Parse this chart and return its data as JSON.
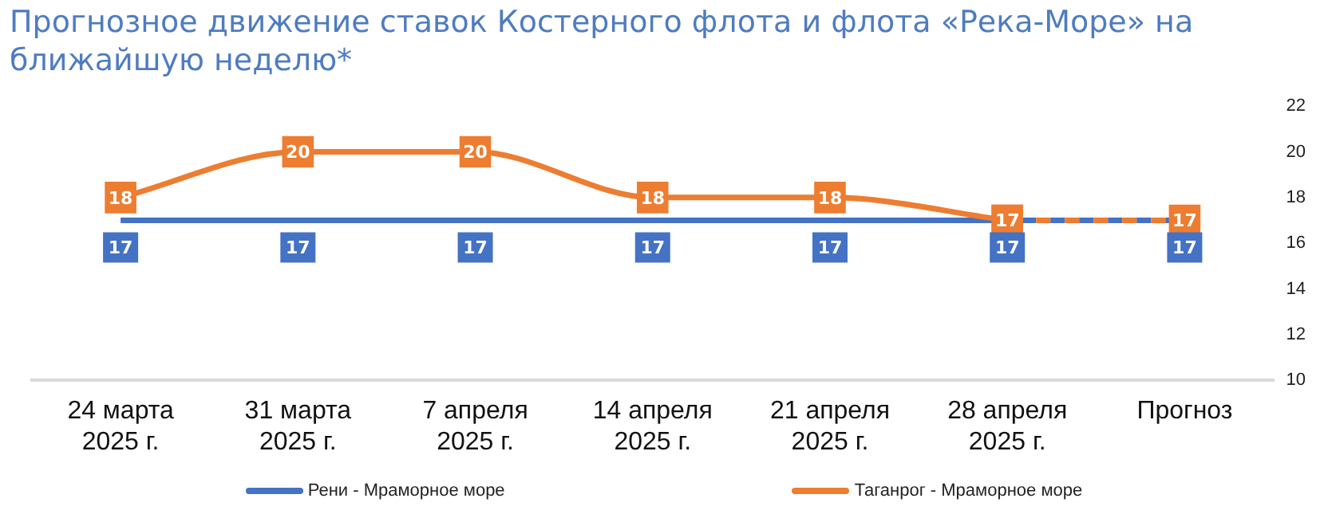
{
  "chart_data": {
    "type": "line",
    "title": "Прогнозное движение ставок Костерного флота и флота «Река-Море» на ближайшую неделю*",
    "categories": [
      "24 марта\n2025 г.",
      "31 марта\n2025 г.",
      "7 апреля\n2025 г.",
      "14 апреля\n2025 г.",
      "21 апреля\n2025 г.",
      "28 апреля\n2025 г.",
      "Прогноз"
    ],
    "series": [
      {
        "name": "Рени - Мраморное море",
        "color": "#4472c4",
        "values": [
          17,
          17,
          17,
          17,
          17,
          17,
          null
        ],
        "line_style": "solid"
      },
      {
        "color": "#4472c4",
        "values": [
          null,
          null,
          null,
          null,
          null,
          17,
          17
        ],
        "value_labels": [
          null,
          null,
          null,
          null,
          null,
          null,
          "17"
        ],
        "line_style": "dashed"
      },
      {
        "name": "Таганрог - Мраморное море",
        "color": "#ed7d31",
        "values": [
          18,
          20,
          20,
          18,
          18,
          17,
          null
        ],
        "line_style": "solid",
        "marker": "square"
      },
      {
        "color": "#ed7d31",
        "values": [
          null,
          null,
          null,
          null,
          null,
          17,
          17
        ],
        "value_labels": [
          null,
          null,
          null,
          null,
          null,
          null,
          "17"
        ],
        "line_style": "dashed",
        "marker": "square"
      }
    ],
    "ylim": [
      10,
      22
    ],
    "yticks": [
      10,
      12,
      14,
      16,
      18,
      20,
      22
    ],
    "grid": false,
    "legend": "bottom",
    "data_labels": true
  }
}
